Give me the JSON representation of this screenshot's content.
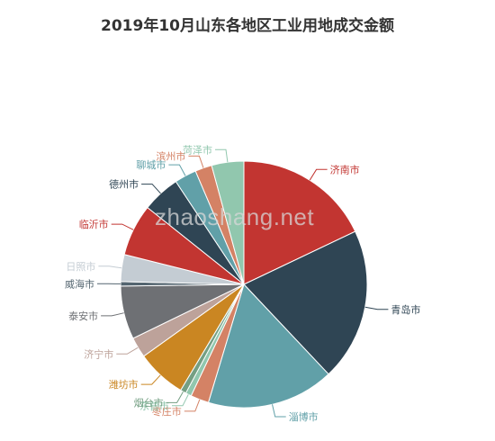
{
  "chart_data": {
    "type": "pie",
    "title": "2019年10月山东各地区工业用地成交金额",
    "slices": [
      {
        "label": "济南市",
        "value": 18.7,
        "color": "#c23531"
      },
      {
        "label": "青岛市",
        "value": 20.9,
        "color": "#2f4554"
      },
      {
        "label": "淄博市",
        "value": 17.4,
        "color": "#61a0a8"
      },
      {
        "label": "枣庄市",
        "value": 2.5,
        "color": "#d48265"
      },
      {
        "label": "东营市",
        "value": 0.8,
        "color": "#91c7ae"
      },
      {
        "label": "烟台市",
        "value": 0.8,
        "color": "#749f83"
      },
      {
        "label": "潍坊市",
        "value": 6.8,
        "color": "#ca8622"
      },
      {
        "label": "济宁市",
        "value": 2.8,
        "color": "#bda29a"
      },
      {
        "label": "泰安市",
        "value": 7.3,
        "color": "#6e7074"
      },
      {
        "label": "威海市",
        "value": 0.6,
        "color": "#546570"
      },
      {
        "label": "日照市",
        "value": 3.7,
        "color": "#c4ccd3"
      },
      {
        "label": "临沂市",
        "value": 7.1,
        "color": "#c23531"
      },
      {
        "label": "德州市",
        "value": 5.2,
        "color": "#2f4554"
      },
      {
        "label": "聊城市",
        "value": 3.0,
        "color": "#61a0a8"
      },
      {
        "label": "滨州市",
        "value": 2.3,
        "color": "#d48265"
      },
      {
        "label": "菏泽市",
        "value": 4.4,
        "color": "#91c7ae"
      }
    ]
  },
  "watermark": "zhaoshang.net"
}
